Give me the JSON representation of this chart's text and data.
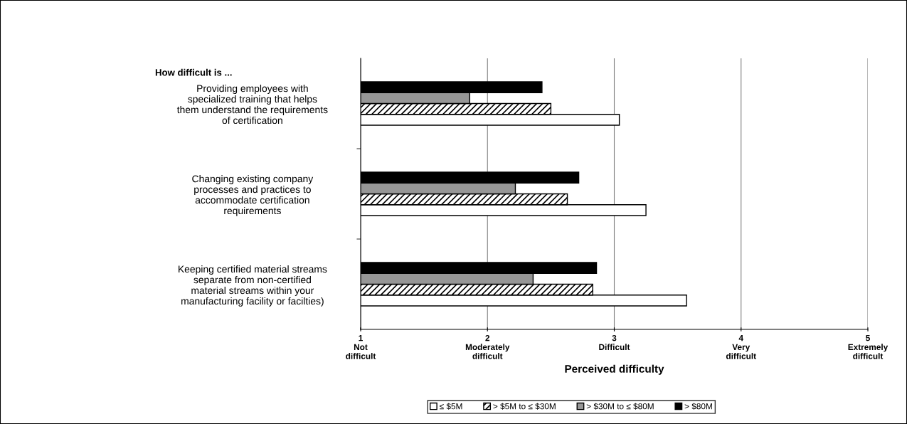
{
  "chart_data": {
    "type": "bar",
    "orientation": "horizontal",
    "title": "How difficult is ...",
    "xlabel": "Perceived difficulty",
    "categories": [
      "Providing employees with\nspecialized training that helps\nthem understand the requirements\nof certification",
      "Changing existing company\nprocesses and practices to\naccommodate certification\nrequirements",
      "Keeping certified material streams\nseparate from non-certified\nmaterial streams within your\nmanufacturing facility or facilties)"
    ],
    "series": [
      {
        "name": "≤ $5M",
        "color": "#ffffff",
        "values": [
          3.04,
          3.25,
          3.57
        ]
      },
      {
        "name": "> $5M to ≤ $30M",
        "color": "#000000",
        "values": [
          2.5,
          2.63,
          2.83
        ]
      },
      {
        "name": "> $30M to ≤ $80M",
        "color": "#969696",
        "values": [
          1.86,
          2.22,
          2.36
        ]
      },
      {
        "name": "> $80M",
        "color": "#000000",
        "values": [
          2.43,
          2.72,
          2.86
        ]
      }
    ],
    "xlim": [
      1,
      5
    ],
    "xticks": [
      {
        "value": 1,
        "label": "1\nNot\ndifficult"
      },
      {
        "value": 2,
        "label": "2\nModerately\ndifficult"
      },
      {
        "value": 3,
        "label": "3\nDifficult"
      },
      {
        "value": 4,
        "label": "4\nVery\ndifficult"
      },
      {
        "value": 5,
        "label": "5\nExtremely\ndifficult"
      }
    ],
    "grid": "x",
    "legend": "bottom"
  }
}
